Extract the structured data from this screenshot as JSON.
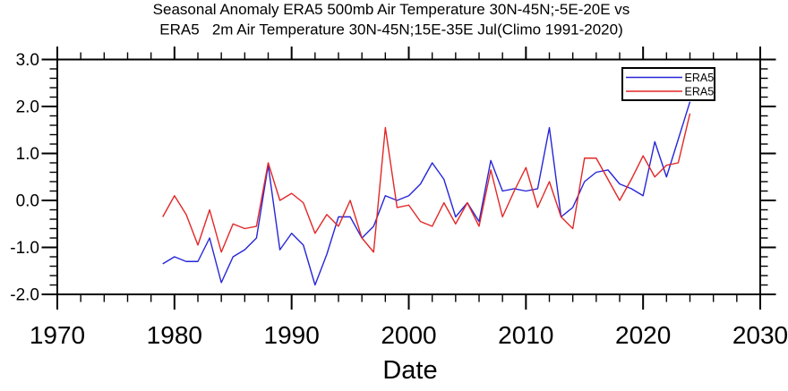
{
  "title_line1": "Seasonal Anomaly ERA5 500mb Air Temperature 30N-45N;-5E-20E vs",
  "title_line2": "ERA5   2m Air Temperature 30N-45N;15E-35E Jul(Climo 1991-2020)",
  "colors": {
    "series1_blue": "#2626d8",
    "series2_red": "#e32727",
    "axis": "#000000",
    "background": "#ffffff"
  },
  "chart_data": {
    "type": "line",
    "title_line1": "Seasonal Anomaly ERA5 500mb Air Temperature 30N-45N;-5E-20E vs",
    "title_line2": "ERA5   2m Air Temperature 30N-45N;15E-35E Jul(Climo 1991-2020)",
    "xlabel": "Date",
    "ylabel": "",
    "xlim": [
      1970,
      2030
    ],
    "ylim": [
      -2.0,
      3.0
    ],
    "x_major_ticks": [
      1970,
      1980,
      1990,
      2000,
      2010,
      2020,
      2030
    ],
    "x_major_tick_labels": [
      "1970",
      "1980",
      "1990",
      "2000",
      "2010",
      "2020",
      "2030"
    ],
    "x_minor_step_years": 2,
    "y_major_ticks": [
      -2.0,
      -1.0,
      0.0,
      1.0,
      2.0,
      3.0
    ],
    "y_major_tick_labels": [
      "-2.0",
      "-1.0",
      "0.0",
      "1.0",
      "2.0",
      "3.0"
    ],
    "y_minor_step": 0.2,
    "grid": false,
    "legend": {
      "position": "top-right",
      "entries": [
        {
          "label": "ERA5",
          "color": "#2626d8"
        },
        {
          "label": "ERA5",
          "color": "#e32727"
        }
      ]
    },
    "x": [
      1979,
      1980,
      1981,
      1982,
      1983,
      1984,
      1985,
      1986,
      1987,
      1988,
      1989,
      1990,
      1991,
      1992,
      1993,
      1994,
      1995,
      1996,
      1997,
      1998,
      1999,
      2000,
      2001,
      2002,
      2003,
      2004,
      2005,
      2006,
      2007,
      2008,
      2009,
      2010,
      2011,
      2012,
      2013,
      2014,
      2015,
      2016,
      2017,
      2018,
      2019,
      2020,
      2021,
      2022,
      2023,
      2024
    ],
    "series": [
      {
        "name": "ERA5",
        "description": "500mb air temperature anomaly 30N-45N;-5E-20E",
        "color": "#2626d8",
        "values": [
          -1.35,
          -1.2,
          -1.3,
          -1.3,
          -0.8,
          -1.75,
          -1.2,
          -1.05,
          -0.8,
          0.75,
          -1.05,
          -0.7,
          -0.95,
          -1.8,
          -1.15,
          -0.35,
          -0.35,
          -0.8,
          -0.55,
          0.1,
          0.0,
          0.1,
          0.35,
          0.8,
          0.45,
          -0.35,
          -0.05,
          -0.45,
          0.85,
          0.2,
          0.25,
          0.2,
          0.25,
          1.55,
          -0.35,
          -0.15,
          0.4,
          0.6,
          0.65,
          0.35,
          0.25,
          0.1,
          1.25,
          0.5,
          1.3,
          2.1
        ]
      },
      {
        "name": "ERA5",
        "description": "2m air temperature anomaly 30N-45N;15E-35E",
        "color": "#e32727",
        "values": [
          -0.35,
          0.1,
          -0.3,
          -0.95,
          -0.2,
          -1.1,
          -0.5,
          -0.6,
          -0.55,
          0.8,
          0.0,
          0.15,
          -0.05,
          -0.7,
          -0.3,
          -0.55,
          0.0,
          -0.8,
          -1.1,
          1.55,
          -0.15,
          -0.1,
          -0.45,
          -0.55,
          -0.05,
          -0.5,
          -0.05,
          -0.55,
          0.65,
          -0.35,
          0.2,
          0.7,
          -0.15,
          0.4,
          -0.35,
          -0.6,
          0.9,
          0.9,
          0.45,
          0.0,
          0.45,
          0.95,
          0.5,
          0.75,
          0.8,
          1.85
        ]
      }
    ]
  }
}
